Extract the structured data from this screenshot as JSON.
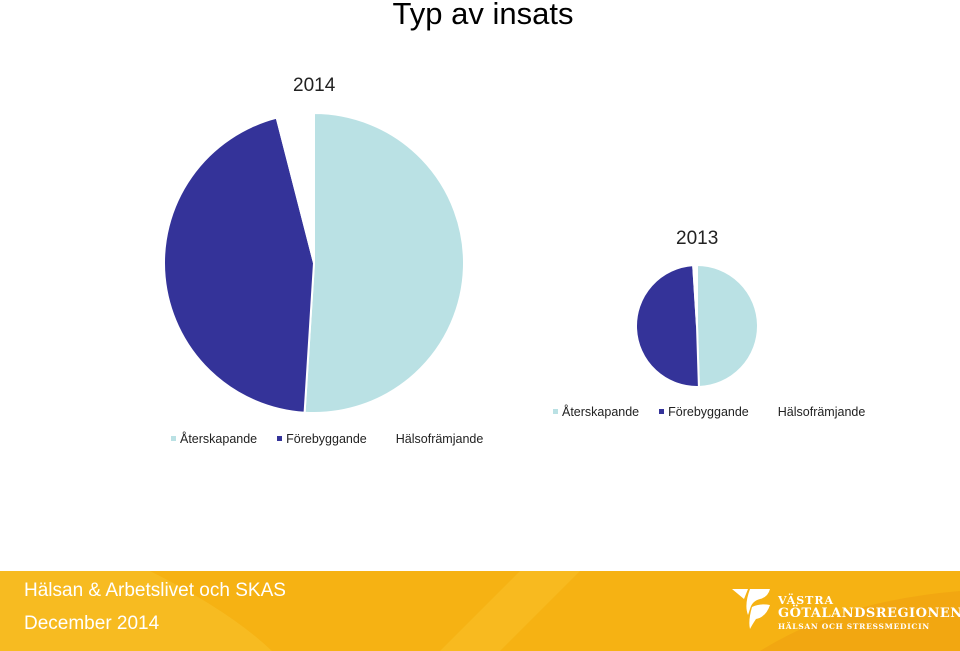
{
  "slide": {
    "title": "Typ av insats"
  },
  "chart_data": [
    {
      "type": "pie",
      "title": "2014",
      "categories": [
        "Återskapande",
        "Förebyggande",
        "Hälsofrämjande"
      ],
      "values": [
        51,
        45,
        4
      ],
      "colors": [
        "#bae1e4",
        "#343399",
        "#ffffff"
      ],
      "legend": "bottom"
    },
    {
      "type": "pie",
      "title": "2013",
      "categories": [
        "Återskapande",
        "Förebyggande",
        "Hälsofrämjande"
      ],
      "values": [
        49.5,
        49.5,
        1
      ],
      "colors": [
        "#bae1e4",
        "#343399",
        "#ffffff"
      ],
      "legend": "bottom"
    }
  ],
  "footer": {
    "line1": "Hälsan & Arbetslivet och SKAS",
    "line2": "December 2014",
    "background_color": "#f6b213",
    "logo": {
      "line1": "VÄSTRA",
      "line2": "GÖTALANDSREGIONEN",
      "line3": "HÄLSAN OCH STRESSMEDICIN"
    }
  }
}
